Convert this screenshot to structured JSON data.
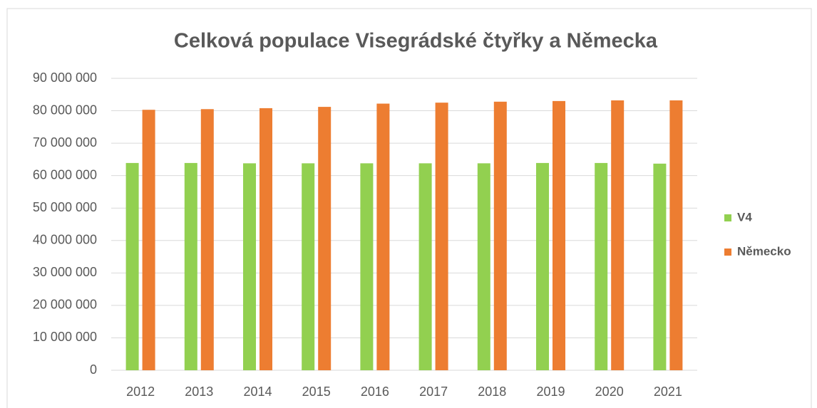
{
  "chart_data": {
    "type": "bar",
    "title": "Celková populace Visegrádské čtyřky a Německa",
    "categories": [
      "2012",
      "2013",
      "2014",
      "2015",
      "2016",
      "2017",
      "2018",
      "2019",
      "2020",
      "2021"
    ],
    "series": [
      {
        "name": "V4",
        "color": "#92d050",
        "values": [
          63900000,
          63900000,
          63800000,
          63800000,
          63800000,
          63800000,
          63800000,
          63900000,
          63900000,
          63700000
        ]
      },
      {
        "name": "Německo",
        "color": "#ed7d31",
        "values": [
          80300000,
          80500000,
          80800000,
          81200000,
          82200000,
          82500000,
          82800000,
          83000000,
          83200000,
          83200000
        ]
      }
    ],
    "ylim": [
      0,
      90000000
    ],
    "yticks": [
      0,
      {
        "value": 10000000,
        "label": "10 000 000"
      },
      {
        "value": 20000000,
        "label": "20 000 000"
      },
      {
        "value": 30000000,
        "label": "30 000 000"
      },
      {
        "value": 40000000,
        "label": "40 000 000"
      },
      {
        "value": 50000000,
        "label": "50 000 000"
      },
      {
        "value": 60000000,
        "label": "60 000 000"
      },
      {
        "value": 70000000,
        "label": "70 000 000"
      },
      {
        "value": 80000000,
        "label": "80 000 000"
      },
      {
        "value": 90000000,
        "label": "90 000 000"
      }
    ],
    "grid": true,
    "legend": "right"
  }
}
